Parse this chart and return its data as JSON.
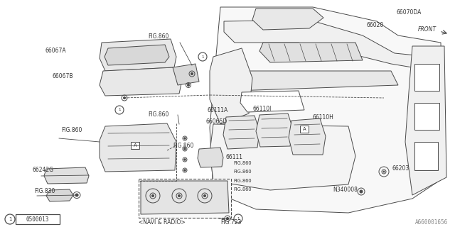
{
  "bg_color": "#ffffff",
  "line_color": "#4a4a4a",
  "text_color": "#333333",
  "fig_width": 6.4,
  "fig_height": 3.2,
  "dpi": 100,
  "bottom_left_label": "0500013",
  "bottom_right_label": "A660001656",
  "navi_label": "<NAVI & RADIO>",
  "fig723_label": "FIG.723"
}
